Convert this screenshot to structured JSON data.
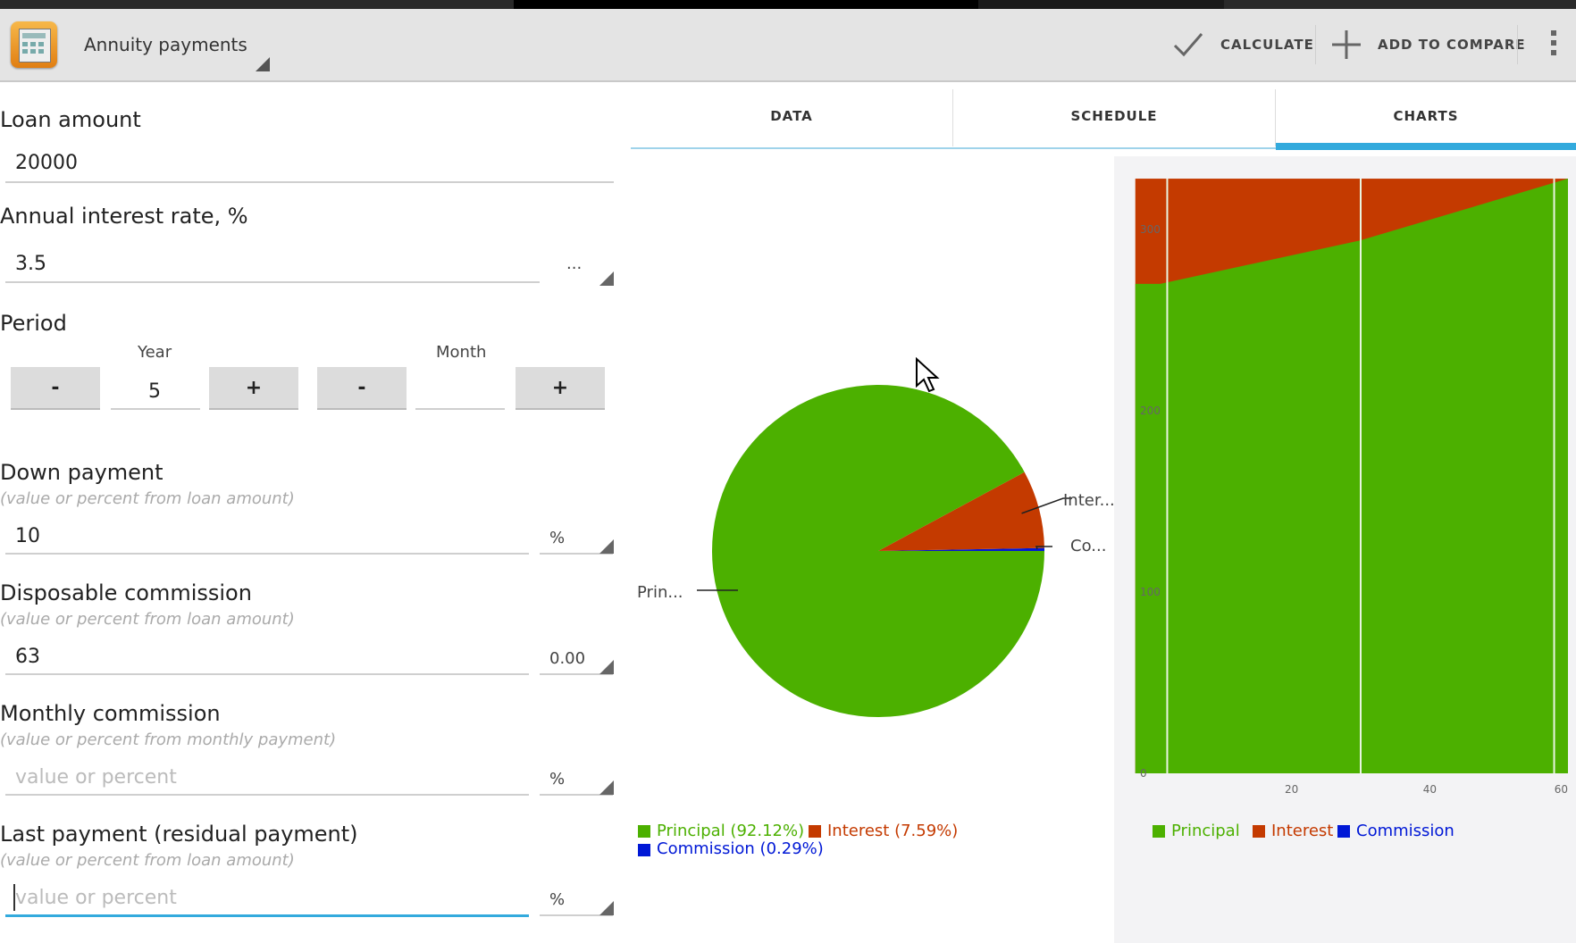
{
  "app": {
    "title": "Annuity payments",
    "icon": "calculator-icon"
  },
  "toolbar": {
    "calculate_label": "CALCULATE",
    "calculate_icon": "checkmark-icon",
    "compare_label": "ADD TO COMPARE",
    "compare_icon": "plus-icon",
    "overflow_icon": "overflow-menu-icon"
  },
  "form": {
    "loan_amount": {
      "label": "Loan amount",
      "value": "20000"
    },
    "interest_rate": {
      "label": "Annual interest rate, %",
      "value": "3.5",
      "more": "..."
    },
    "period": {
      "label": "Period",
      "year_label": "Year",
      "year_value": "5",
      "month_label": "Month",
      "month_value": "",
      "minus": "-",
      "plus": "+"
    },
    "down_payment": {
      "label": "Down payment",
      "hint": "(value or percent from loan amount)",
      "value": "10",
      "unit": "%"
    },
    "disposable_commission": {
      "label": "Disposable commission",
      "hint": "(value or percent from loan amount)",
      "value": "63",
      "unit": "0.00"
    },
    "monthly_commission": {
      "label": "Monthly commission",
      "hint": "(value or percent from monthly payment)",
      "placeholder": "value or percent",
      "unit": "%"
    },
    "last_payment": {
      "label": "Last payment (residual payment)",
      "hint": "(value or percent from loan amount)",
      "placeholder": "value or percent",
      "unit": "%"
    }
  },
  "tabs": [
    {
      "label": "DATA",
      "active": false
    },
    {
      "label": "SCHEDULE",
      "active": false
    },
    {
      "label": "CHARTS",
      "active": true
    }
  ],
  "colors": {
    "principal": "#4cb000",
    "interest": "#c43a00",
    "commission": "#0018d6",
    "tab_indicator": "#33aadd"
  },
  "chart_data": [
    {
      "type": "pie",
      "slices": [
        {
          "label": "Principal",
          "value": 92.12,
          "callout": "Prin..."
        },
        {
          "label": "Interest",
          "value": 7.59,
          "callout": "Inter..."
        },
        {
          "label": "Commission",
          "value": 0.29,
          "callout": "Co..."
        }
      ],
      "legend": [
        "Principal (92.12%)",
        "Interest (7.59%)",
        "Commission (0.29%)"
      ],
      "legend_position": "bottom"
    },
    {
      "type": "area",
      "stacked": true,
      "x": [
        1,
        30,
        60
      ],
      "series": [
        {
          "name": "Principal",
          "values": [
            270,
            294,
            328
          ]
        },
        {
          "name": "Interest",
          "values": [
            52,
            28,
            1
          ]
        },
        {
          "name": "Commission",
          "values": [
            0,
            0,
            0
          ]
        }
      ],
      "xticks": [
        "20",
        "40",
        "60"
      ],
      "yticks": [
        "0",
        "100",
        "200",
        "300"
      ],
      "xlim": [
        0,
        60
      ],
      "ylim": [
        0,
        330
      ],
      "legend": [
        "Principal",
        "Interest",
        "Commission"
      ],
      "legend_position": "bottom"
    }
  ]
}
